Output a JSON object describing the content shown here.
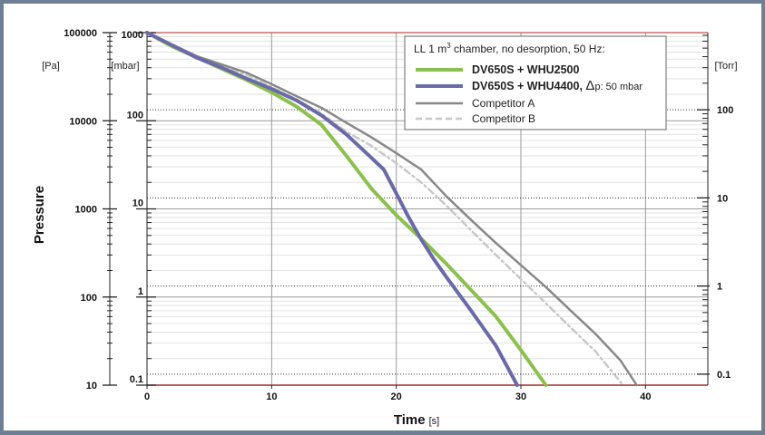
{
  "chart_data": {
    "type": "line",
    "title": "",
    "xlabel": "Time",
    "xlabel_unit": "[s]",
    "ylabel": "Pressure",
    "x_range": [
      0,
      45
    ],
    "x_ticks": [
      0,
      10,
      20,
      30,
      40
    ],
    "y_range_mbar": [
      0.1,
      1000
    ],
    "y_scale": "log",
    "grid": true,
    "legend_position": "top-right",
    "legend_title_pre": "LL 1 m",
    "legend_title_sup": "3",
    "legend_title_post": " chamber, no desorption, 50 Hz:",
    "axes": {
      "pa": {
        "unit": "[Pa]",
        "ticks": [
          {
            "label": "100000",
            "mbar": 1000
          },
          {
            "label": "10000",
            "mbar": 100
          },
          {
            "label": "1000",
            "mbar": 10
          },
          {
            "label": "100",
            "mbar": 1
          },
          {
            "label": "10",
            "mbar": 0.1
          }
        ]
      },
      "mbar": {
        "unit": "[mbar]",
        "ticks": [
          {
            "label": "1000",
            "mbar": 1000
          },
          {
            "label": "100",
            "mbar": 100
          },
          {
            "label": "10",
            "mbar": 10
          },
          {
            "label": "1",
            "mbar": 1
          },
          {
            "label": "0.1",
            "mbar": 0.1
          }
        ]
      },
      "torr": {
        "unit": "[Torr]",
        "ticks": [
          {
            "label": "100",
            "mbar": 133.3
          },
          {
            "label": "10",
            "mbar": 13.33
          },
          {
            "label": "1",
            "mbar": 1.333
          },
          {
            "label": "0.1",
            "mbar": 0.1333
          }
        ]
      }
    },
    "series": [
      {
        "name": "DV650S + WHU2500",
        "bold": true,
        "color": "#8cc04e",
        "width": 4,
        "dash": "",
        "points": [
          [
            0,
            1000
          ],
          [
            2,
            700
          ],
          [
            5,
            450
          ],
          [
            8,
            290
          ],
          [
            10,
            210
          ],
          [
            12,
            145
          ],
          [
            14,
            90
          ],
          [
            16,
            40
          ],
          [
            18,
            17
          ],
          [
            20,
            8.5
          ],
          [
            22,
            4.6
          ],
          [
            24,
            2.4
          ],
          [
            26,
            1.2
          ],
          [
            28,
            0.6
          ],
          [
            30,
            0.25
          ],
          [
            32,
            0.1
          ]
        ]
      },
      {
        "name": "DV650S + WHU4400, ",
        "name_delta": "Δ",
        "name_tail": "p: 50 mbar",
        "bold": true,
        "color": "#6b6aa8",
        "width": 4,
        "dash": "",
        "points": [
          [
            0,
            1000
          ],
          [
            2,
            720
          ],
          [
            4,
            520
          ],
          [
            6,
            400
          ],
          [
            8,
            300
          ],
          [
            10,
            230
          ],
          [
            12,
            170
          ],
          [
            14,
            115
          ],
          [
            16,
            70
          ],
          [
            18,
            38
          ],
          [
            19,
            28
          ],
          [
            20,
            15
          ],
          [
            21,
            8
          ],
          [
            22,
            4.5
          ],
          [
            23,
            2.7
          ],
          [
            24,
            1.7
          ],
          [
            26,
            0.7
          ],
          [
            28,
            0.28
          ],
          [
            29.7,
            0.1
          ]
        ]
      },
      {
        "name": "Competitor A",
        "bold": false,
        "color": "#888888",
        "width": 2.5,
        "dash": "",
        "points": [
          [
            0,
            1000
          ],
          [
            4,
            540
          ],
          [
            8,
            350
          ],
          [
            10,
            260
          ],
          [
            12,
            190
          ],
          [
            14,
            140
          ],
          [
            16,
            95
          ],
          [
            18,
            65
          ],
          [
            20,
            43
          ],
          [
            22,
            28
          ],
          [
            24,
            14
          ],
          [
            26,
            7.5
          ],
          [
            28,
            4.1
          ],
          [
            30,
            2.3
          ],
          [
            32,
            1.3
          ],
          [
            34,
            0.7
          ],
          [
            36,
            0.38
          ],
          [
            38,
            0.19
          ],
          [
            39.3,
            0.1
          ]
        ]
      },
      {
        "name": "Competitor B",
        "bold": false,
        "color": "#c8c8c8",
        "width": 2.5,
        "dash": "7 4 2 4",
        "points": [
          [
            0,
            1000
          ],
          [
            4,
            530
          ],
          [
            8,
            330
          ],
          [
            10,
            240
          ],
          [
            12,
            175
          ],
          [
            14,
            120
          ],
          [
            16,
            75
          ],
          [
            18,
            52
          ],
          [
            20,
            33
          ],
          [
            22,
            20
          ],
          [
            24,
            11
          ],
          [
            26,
            5.7
          ],
          [
            28,
            3.0
          ],
          [
            30,
            1.6
          ],
          [
            32,
            0.85
          ],
          [
            34,
            0.45
          ],
          [
            36,
            0.24
          ],
          [
            38.2,
            0.1
          ]
        ]
      }
    ]
  }
}
